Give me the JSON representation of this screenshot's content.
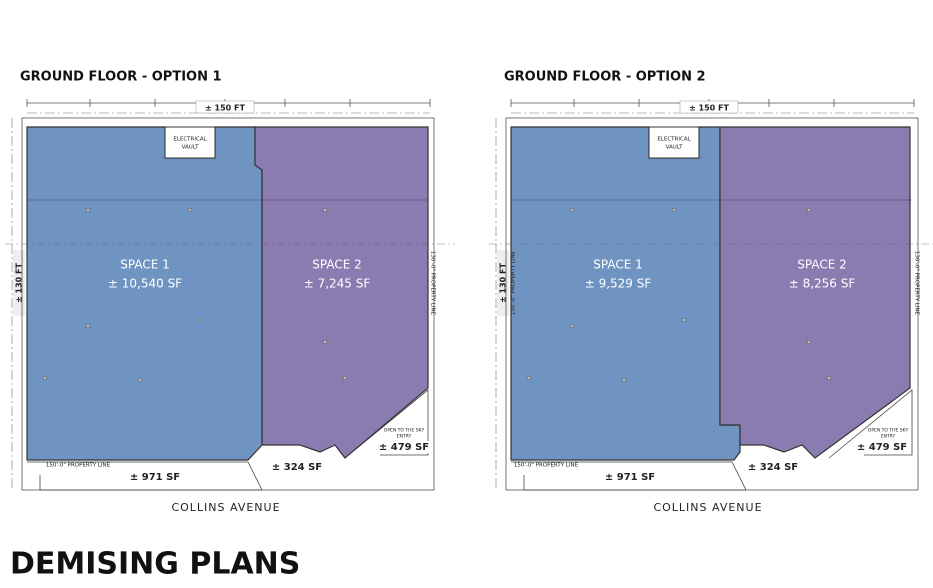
{
  "title": "DEMISING PLANS",
  "plans": [
    {
      "title": "GROUND FLOOR - OPTION 1",
      "width": "± 150 FT",
      "depth": "± 130 FT",
      "vault": [
        "ELECTRICAL",
        "VAULT"
      ],
      "spaces": [
        {
          "name": "SPACE 1",
          "area": "± 10,540 SF"
        },
        {
          "name": "SPACE 2",
          "area": "± 7,245 SF"
        }
      ],
      "front_property_line": "150'-0\" PROPERTY LINE",
      "side_property_line": "130'-0\" PROPERTY LINE",
      "terraces": [
        "± 971 SF",
        "± 324 SF",
        "± 479 SF"
      ],
      "entry": [
        "OPEN TO THE SKY",
        "ENTRY"
      ],
      "street": "COLLINS AVENUE"
    },
    {
      "title": "GROUND FLOOR - OPTION 2",
      "width": "± 150 FT",
      "depth": "± 130 FT",
      "vault": [
        "ELECTRICAL",
        "VAULT"
      ],
      "spaces": [
        {
          "name": "SPACE 1",
          "area": "± 9,529 SF"
        },
        {
          "name": "SPACE 2",
          "area": "± 8,256 SF"
        }
      ],
      "front_property_line": "150'-0\" PROPERTY LINE",
      "side_property_line": "130'-0\" PROPERTY LINE",
      "left_property_line": "130'-0\" PROPERTY LINE",
      "terraces": [
        "± 971 SF",
        "± 324 SF",
        "± 479 SF"
      ],
      "entry": [
        "OPEN TO THE SKY",
        "ENTRY"
      ],
      "street": "COLLINS AVENUE"
    }
  ]
}
